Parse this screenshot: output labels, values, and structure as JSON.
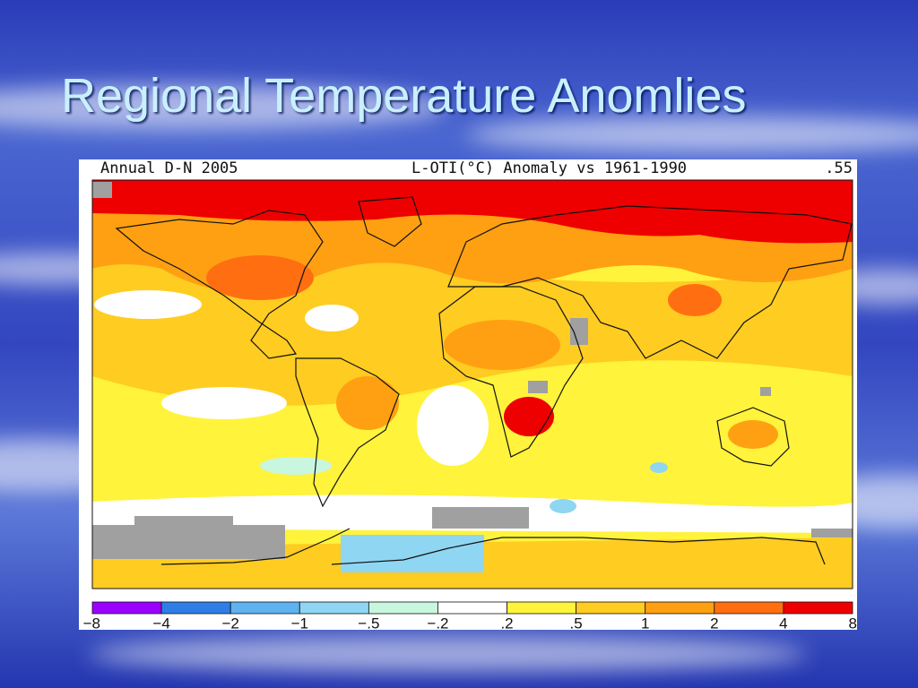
{
  "title": "Regional Temperature Anomlies",
  "map": {
    "header_left": "Annual D-N 2005",
    "header_center": "L-OTI(°C) Anomaly vs 1961-1990",
    "header_right": ".55",
    "colorbar": {
      "colors": [
        "#9b00ff",
        "#2f7ee6",
        "#5fb2f0",
        "#8fd6f2",
        "#c9f6df",
        "#ffffff",
        "#fff33c",
        "#ffcc22",
        "#ffa012",
        "#ff6f12",
        "#ee0000",
        "#8f0000"
      ],
      "labels": [
        "−8",
        "−4",
        "−2",
        "−1",
        "−.5",
        "−.2",
        ".2",
        ".5",
        "1",
        "2",
        "4",
        "8"
      ]
    }
  }
}
